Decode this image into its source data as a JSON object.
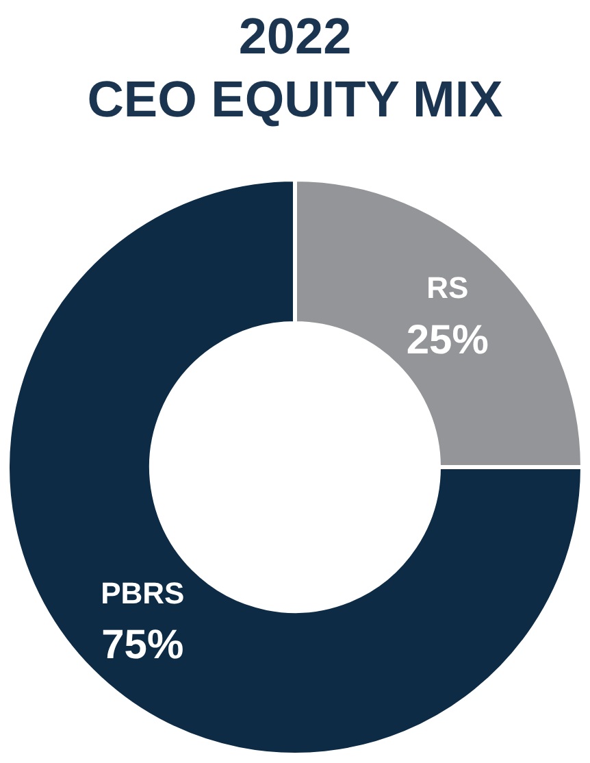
{
  "chart_data": {
    "type": "donut",
    "title": "2022\nCEO EQUITY MIX",
    "categories": [
      "RS",
      "PBRS"
    ],
    "values": [
      25,
      75
    ],
    "colors": [
      "#939598",
      "#0d2b45"
    ],
    "value_labels": [
      "25%",
      "75%"
    ],
    "legend": false
  }
}
